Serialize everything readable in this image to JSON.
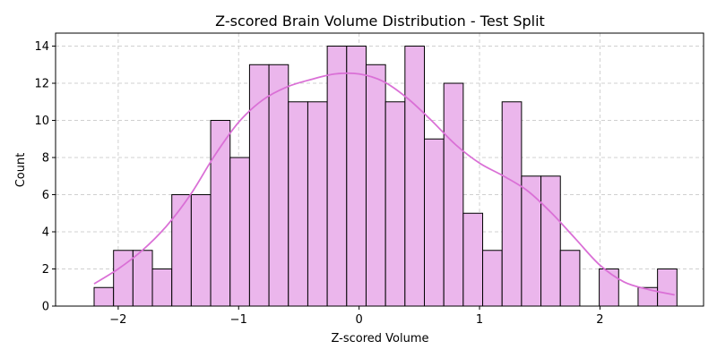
{
  "chart_data": {
    "type": "bar",
    "title": "Z-scored Brain Volume Distribution - Test Split",
    "xlabel": "Z-scored Volume",
    "ylabel": "Count",
    "xlim": [
      -2.52,
      2.86
    ],
    "ylim": [
      0,
      14.7
    ],
    "x_ticks": [
      -2,
      -1,
      0,
      1,
      2
    ],
    "x_tick_labels": [
      "−2",
      "−1",
      "0",
      "1",
      "2"
    ],
    "y_ticks": [
      0,
      2,
      4,
      6,
      8,
      10,
      12,
      14
    ],
    "y_tick_labels": [
      "0",
      "2",
      "4",
      "6",
      "8",
      "10",
      "12",
      "14"
    ],
    "grid": true,
    "bin_start": -2.2,
    "bin_width": 0.1613,
    "counts": [
      1,
      3,
      3,
      2,
      6,
      6,
      10,
      8,
      13,
      13,
      11,
      11,
      14,
      14,
      13,
      11,
      14,
      9,
      12,
      5,
      3,
      11,
      7,
      7,
      3,
      0,
      2,
      0,
      1,
      2
    ],
    "kde": {
      "x": [
        -2.2,
        -2.0,
        -1.8,
        -1.6,
        -1.4,
        -1.2,
        -1.0,
        -0.8,
        -0.6,
        -0.4,
        -0.2,
        0.0,
        0.2,
        0.4,
        0.6,
        0.8,
        1.0,
        1.2,
        1.4,
        1.6,
        1.8,
        2.0,
        2.2,
        2.4,
        2.62
      ],
      "y": [
        1.2,
        2.0,
        3.0,
        4.3,
        6.0,
        8.1,
        9.9,
        11.1,
        11.8,
        12.2,
        12.5,
        12.5,
        12.1,
        11.2,
        10.0,
        8.7,
        7.7,
        7.0,
        6.2,
        5.0,
        3.6,
        2.2,
        1.3,
        0.9,
        0.6
      ]
    },
    "colors": {
      "bar_fill": "#ebb6ec",
      "bar_edge": "#000000",
      "kde_line": "#da70d6",
      "grid": "#d0d0d0"
    }
  }
}
